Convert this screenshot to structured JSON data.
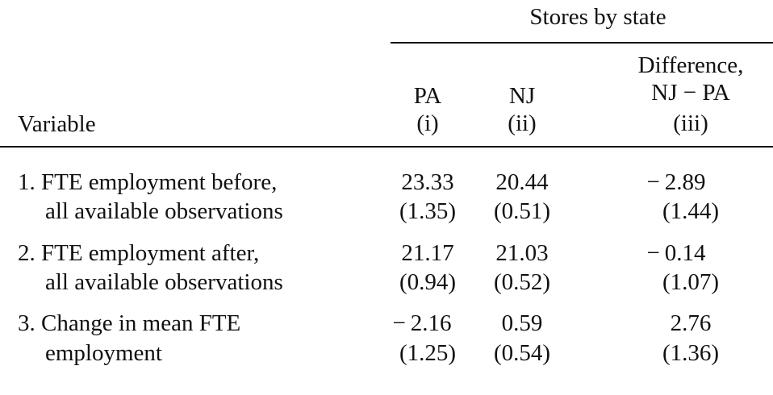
{
  "table": {
    "group_header": "Stores by state",
    "columns": [
      {
        "name": "PA",
        "index": "(i)"
      },
      {
        "name": "NJ",
        "index": "(ii)"
      },
      {
        "name_line1": "Difference,",
        "name_line2": "NJ − PA",
        "index": "(iii)"
      }
    ],
    "variable_header": "Variable",
    "rows": [
      {
        "label_line1": "1.  FTE employment before,",
        "label_line2": "all available observations",
        "values": [
          "23.33",
          "20.44",
          "− 2.89"
        ],
        "errors": [
          "(1.35)",
          "(0.51)",
          "(1.44)"
        ]
      },
      {
        "label_line1": "2.  FTE employment after,",
        "label_line2": "all available observations",
        "values": [
          "21.17",
          "21.03",
          "− 0.14"
        ],
        "errors": [
          "(0.94)",
          "(0.52)",
          "(1.07)"
        ]
      },
      {
        "label_line1": "3.  Change in mean FTE",
        "label_line2": "employment",
        "values": [
          "− 2.16",
          "0.59",
          "2.76"
        ],
        "errors": [
          "(1.25)",
          "(0.54)",
          "(1.36)"
        ]
      }
    ]
  }
}
